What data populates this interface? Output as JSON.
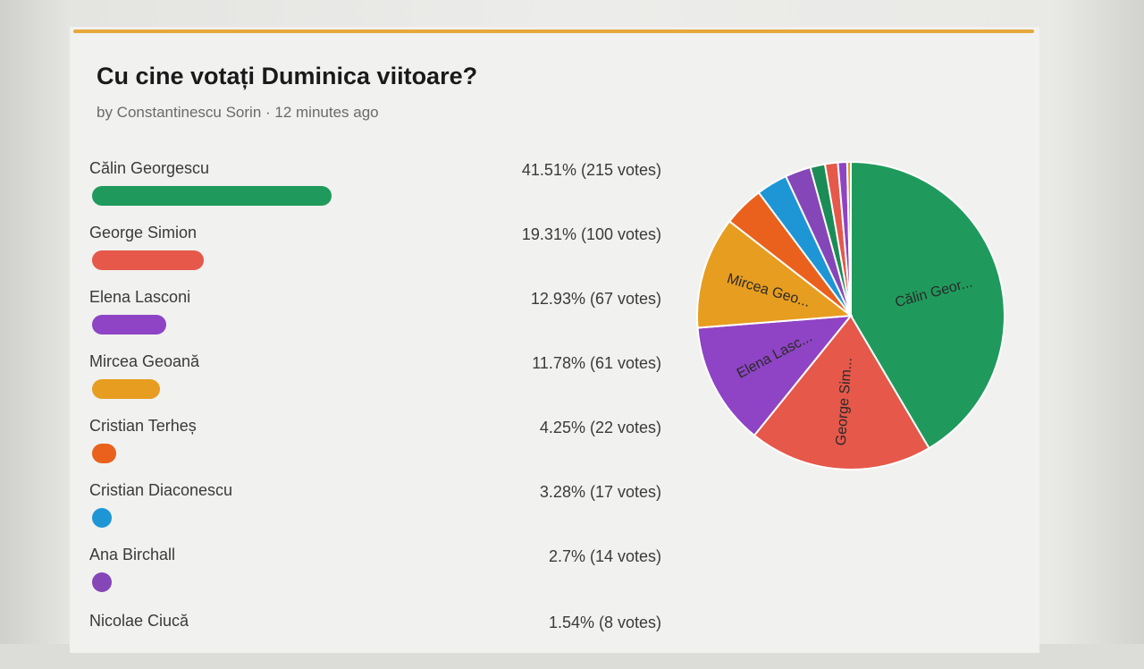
{
  "poll": {
    "title": "Cu cine votați Duminica viitoare?",
    "meta": "by Constantinescu Sorin · 12 minutes ago"
  },
  "colors": {
    "accent": "#e6a83a",
    "green": "#1f9a5c",
    "red": "#e5584a",
    "purple": "#8e44c4",
    "orange": "#e79d1f",
    "deep_orange": "#e9611c",
    "blue": "#1e96d6",
    "violet": "#8547b8",
    "dark_green": "#1c8c56"
  },
  "chart_data": {
    "type": "bar",
    "title": "Cu cine votați Duminica viitoare?",
    "categories": [
      "Călin Georgescu",
      "George Simion",
      "Elena Lasconi",
      "Mircea Geoană",
      "Cristian Terheș",
      "Cristian Diaconescu",
      "Ana Birchall",
      "Nicolae Ciucă"
    ],
    "values": [
      215,
      100,
      67,
      61,
      22,
      17,
      14,
      8
    ],
    "percent_labels": [
      "41.51% (215 votes)",
      "19.31% (100 votes)",
      "12.93% (67 votes)",
      "11.78% (61 votes)",
      "4.25% (22 votes)",
      "3.28% (17 votes)",
      "2.7% (14 votes)",
      "1.54% (8 votes)"
    ],
    "percents": [
      41.51,
      19.31,
      12.93,
      11.78,
      4.25,
      3.28,
      2.7,
      1.54
    ],
    "bar_colors": [
      "#1f9a5c",
      "#e5584a",
      "#8e44c4",
      "#e79d1f",
      "#e9611c",
      "#1e96d6",
      "#8547b8",
      "#1c8c56"
    ]
  },
  "pie_data": {
    "type": "pie",
    "values": [
      215,
      100,
      67,
      61,
      22,
      17,
      14,
      8,
      7,
      5,
      2
    ],
    "colors": [
      "#1f9a5c",
      "#e5584a",
      "#8e44c4",
      "#e79d1f",
      "#e9611c",
      "#1e96d6",
      "#8547b8",
      "#1c8c56",
      "#e5584a",
      "#8e44c4",
      "#e79d1f"
    ],
    "labels": [
      "Călin Geor...",
      "George Sim...",
      "Elena Lasc...",
      "Mircea Geo...",
      "",
      "",
      "",
      "",
      "",
      "",
      ""
    ]
  }
}
